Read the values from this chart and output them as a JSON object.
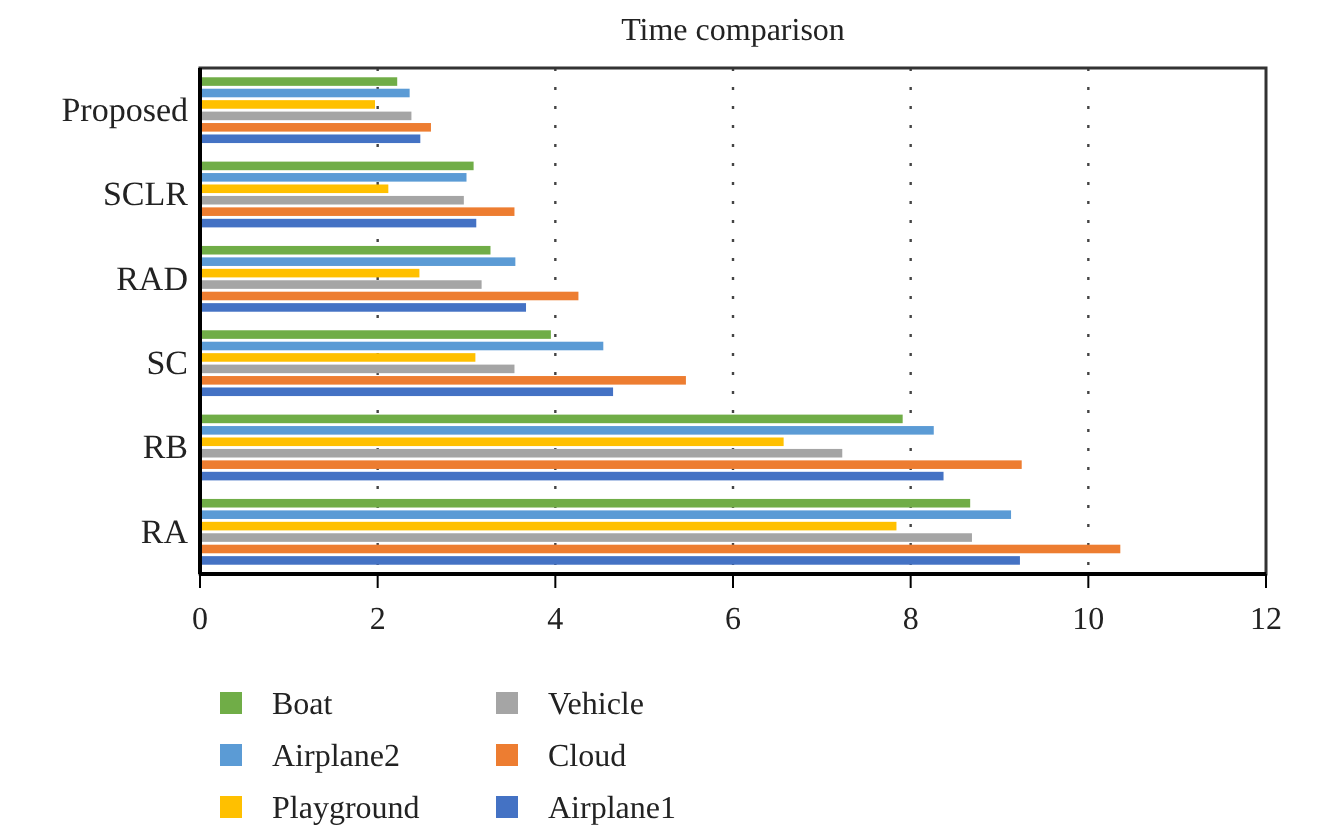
{
  "chart_data": {
    "type": "bar",
    "orientation": "horizontal",
    "title": "Time comparison",
    "categories": [
      "Proposed",
      "SCLR",
      "RAD",
      "SC",
      "RB",
      "RA"
    ],
    "series": [
      {
        "name": "Boat",
        "color": "#70ad47",
        "values": [
          2.22,
          3.08,
          3.27,
          3.95,
          7.91,
          8.67
        ]
      },
      {
        "name": "Airplane2",
        "color": "#5b9bd5",
        "values": [
          2.36,
          3.0,
          3.55,
          4.54,
          8.26,
          9.13
        ]
      },
      {
        "name": "Playground",
        "color": "#ffc000",
        "values": [
          1.97,
          2.12,
          2.47,
          3.1,
          6.57,
          7.84
        ]
      },
      {
        "name": "Vehicle",
        "color": "#a5a5a5",
        "values": [
          2.38,
          2.97,
          3.17,
          3.54,
          7.23,
          8.69
        ]
      },
      {
        "name": "Cloud",
        "color": "#ed7d31",
        "values": [
          2.6,
          3.54,
          4.26,
          5.47,
          9.25,
          10.36
        ]
      },
      {
        "name": "Airplane1",
        "color": "#4472c4",
        "values": [
          2.48,
          3.11,
          3.67,
          4.65,
          8.37,
          9.23
        ]
      }
    ],
    "xlim": [
      0,
      12
    ],
    "xticks": [
      0,
      2,
      4,
      6,
      8,
      10,
      12
    ],
    "grid": "x",
    "legend": "bottom left"
  }
}
